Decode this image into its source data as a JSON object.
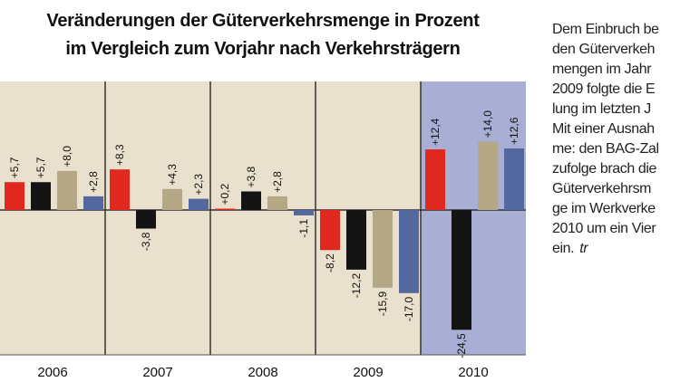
{
  "colors": {
    "background": "#e9e1cd",
    "highlight_background": "#a9aed4",
    "series": [
      "#e0281e",
      "#141414",
      "#b5a887",
      "#52689e"
    ]
  },
  "title_lines": [
    "Veränderungen der Güterverkehrsmenge in Prozent",
    "im Vergleich zum Vorjahr nach Verkehrsträgern"
  ],
  "chart_data": {
    "type": "bar",
    "title": "Veränderungen der Güterverkehrsmenge in Prozent im Vergleich zum Vorjahr nach Verkehrsträgern",
    "categories": [
      "2006",
      "2007",
      "2008",
      "2009",
      "2010"
    ],
    "highlighted_category": "2010",
    "series": [
      {
        "values": [
          5.7,
          8.3,
          0.2,
          -8.2,
          12.4
        ],
        "labels": [
          "+5,7",
          "+8,3",
          "+0,2",
          "-8,2",
          "+12,4"
        ]
      },
      {
        "values": [
          5.7,
          -3.8,
          3.8,
          -12.2,
          -24.5
        ],
        "labels": [
          "+5,7",
          "-3,8",
          "+3,8",
          "-12,2",
          "-24,5"
        ]
      },
      {
        "values": [
          8.0,
          4.3,
          2.8,
          -15.9,
          14.0
        ],
        "labels": [
          "+8,0",
          "+4,3",
          "+2,8",
          "-15,9",
          "+14,0"
        ]
      },
      {
        "values": [
          2.8,
          2.3,
          -1.1,
          -17.0,
          12.6
        ],
        "labels": [
          "+2,8",
          "+2,3",
          "-1,1",
          "-17,0",
          "+12,6"
        ]
      }
    ],
    "ylim": [
      -25,
      15
    ],
    "grid": "vertical separators between years",
    "legend": "none"
  },
  "side_text": {
    "lines": [
      "Dem Einbruch be",
      "den Güterverkeh",
      "mengen im Jahr",
      "2009 folgte die E",
      "lung im letzten J",
      "Mit einer Ausnah",
      "me: den BAG-Zal",
      "zufolge brach die",
      "Güterverkehrsm",
      "ge im Werkverke",
      "2010 um ein Vier",
      "ein."
    ],
    "author": "tr"
  }
}
